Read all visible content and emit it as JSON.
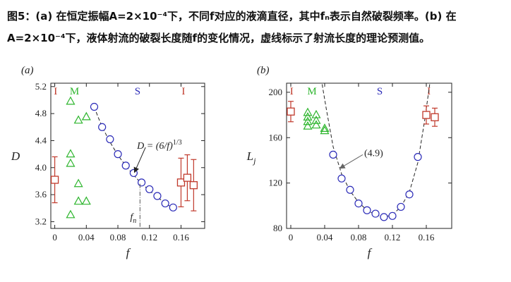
{
  "caption": {
    "line1": "图5：(a) 在恒定振幅A=2×10⁻⁴下，不同f对应的液滴直径，其中fₙ表示自然破裂频率。(b) 在",
    "line2": "A=2×10⁻⁴下，液体射流的破裂长度随f的变化情况，虚线标示了射流长度的理论预测值。"
  },
  "colors": {
    "I": "#c0392b",
    "M": "#2db52d",
    "S": "#2b2bb8",
    "axis": "#222222"
  },
  "chart_data": [
    {
      "panel_label": "(a)",
      "type": "scatter",
      "xlabel": "f",
      "ylabel": "D",
      "xlim": [
        -0.005,
        0.19
      ],
      "ylim": [
        3.1,
        5.25
      ],
      "xticks": [
        0,
        0.04,
        0.08,
        0.12,
        0.16
      ],
      "xtick_labels": [
        "0",
        "0.04",
        "0.08",
        "0.12",
        "0.16"
      ],
      "yticks": [
        3.2,
        3.6,
        4.0,
        4.4,
        4.8,
        5.2
      ],
      "ytick_labels": [
        "3.2",
        "3.6",
        "4.0",
        "4.4",
        "4.8",
        "5.2"
      ],
      "region_labels": [
        {
          "text": "I",
          "x": 0.001,
          "color_key": "I"
        },
        {
          "text": "M",
          "x": 0.025,
          "color_key": "M"
        },
        {
          "text": "S",
          "x": 0.105,
          "color_key": "S"
        },
        {
          "text": "I",
          "x": 0.163,
          "color_key": "I"
        }
      ],
      "series": [
        {
          "name": "I",
          "marker": "square",
          "color_key": "I",
          "points": [
            {
              "x": 0.0,
              "y": 3.82,
              "err": 0.34
            },
            {
              "x": 0.16,
              "y": 3.78,
              "err": 0.36
            },
            {
              "x": 0.168,
              "y": 3.85,
              "err": 0.34
            },
            {
              "x": 0.176,
              "y": 3.74,
              "err": 0.38
            }
          ]
        },
        {
          "name": "M",
          "marker": "triangle",
          "color_key": "M",
          "points": [
            {
              "x": 0.02,
              "y": 4.98
            },
            {
              "x": 0.02,
              "y": 4.2
            },
            {
              "x": 0.02,
              "y": 4.06
            },
            {
              "x": 0.02,
              "y": 3.3
            },
            {
              "x": 0.03,
              "y": 4.7
            },
            {
              "x": 0.03,
              "y": 3.76
            },
            {
              "x": 0.03,
              "y": 3.5
            },
            {
              "x": 0.04,
              "y": 4.75
            },
            {
              "x": 0.04,
              "y": 3.5
            }
          ]
        },
        {
          "name": "S",
          "marker": "circle",
          "color_key": "S",
          "points": [
            {
              "x": 0.05,
              "y": 4.9
            },
            {
              "x": 0.06,
              "y": 4.6
            },
            {
              "x": 0.07,
              "y": 4.42
            },
            {
              "x": 0.08,
              "y": 4.2
            },
            {
              "x": 0.09,
              "y": 4.03
            },
            {
              "x": 0.1,
              "y": 3.92
            },
            {
              "x": 0.11,
              "y": 3.78
            },
            {
              "x": 0.12,
              "y": 3.68
            },
            {
              "x": 0.13,
              "y": 3.58
            },
            {
              "x": 0.14,
              "y": 3.47
            },
            {
              "x": 0.15,
              "y": 3.41
            }
          ]
        }
      ],
      "theory_curve": {
        "label": "D = (6/f)^{1/3}",
        "x_range": [
          0.05,
          0.153
        ]
      },
      "annotation": {
        "text": "D = (6/f)",
        "superscript": "1/3",
        "arrow_from": {
          "x": 0.115,
          "y": 4.3
        },
        "arrow_to": {
          "x": 0.101,
          "y": 3.93
        }
      },
      "vline": {
        "x": 0.108,
        "y_bottom": 3.1,
        "y_top": 3.76,
        "label": "f",
        "label_sub": "n"
      }
    },
    {
      "panel_label": "(b)",
      "type": "scatter",
      "xlabel": "f",
      "ylabel": "L",
      "ylabel_sub": "j",
      "xlim": [
        -0.005,
        0.19
      ],
      "ylim": [
        80,
        208
      ],
      "xticks": [
        0,
        0.04,
        0.08,
        0.12,
        0.16
      ],
      "xtick_labels": [
        "0",
        "0.04",
        "0.08",
        "0.12",
        "0.16"
      ],
      "yticks": [
        80,
        120,
        160,
        200
      ],
      "ytick_labels": [
        "80",
        "120",
        "160",
        "200"
      ],
      "region_labels": [
        {
          "text": "I",
          "x": 0.001,
          "color_key": "I"
        },
        {
          "text": "M",
          "x": 0.025,
          "color_key": "M"
        },
        {
          "text": "S",
          "x": 0.105,
          "color_key": "S"
        },
        {
          "text": "I",
          "x": 0.163,
          "color_key": "I"
        }
      ],
      "series": [
        {
          "name": "I",
          "marker": "square",
          "color_key": "I",
          "points": [
            {
              "x": 0.0,
              "y": 183,
              "err": 9
            },
            {
              "x": 0.16,
              "y": 180,
              "err": 8
            },
            {
              "x": 0.17,
              "y": 178,
              "err": 8
            }
          ]
        },
        {
          "name": "M",
          "marker": "triangle",
          "color_key": "M",
          "points": [
            {
              "x": 0.02,
              "y": 182
            },
            {
              "x": 0.02,
              "y": 178
            },
            {
              "x": 0.02,
              "y": 174
            },
            {
              "x": 0.02,
              "y": 170
            },
            {
              "x": 0.03,
              "y": 180
            },
            {
              "x": 0.03,
              "y": 175
            },
            {
              "x": 0.03,
              "y": 171
            },
            {
              "x": 0.04,
              "y": 168
            },
            {
              "x": 0.04,
              "y": 166
            }
          ]
        },
        {
          "name": "S",
          "marker": "circle",
          "color_key": "S",
          "points": [
            {
              "x": 0.05,
              "y": 145
            },
            {
              "x": 0.06,
              "y": 124
            },
            {
              "x": 0.07,
              "y": 114
            },
            {
              "x": 0.08,
              "y": 102
            },
            {
              "x": 0.09,
              "y": 96
            },
            {
              "x": 0.1,
              "y": 93
            },
            {
              "x": 0.11,
              "y": 90
            },
            {
              "x": 0.12,
              "y": 91
            },
            {
              "x": 0.13,
              "y": 99
            },
            {
              "x": 0.14,
              "y": 110
            },
            {
              "x": 0.15,
              "y": 143
            }
          ]
        }
      ],
      "theory_curve_points": [
        {
          "x": 0.037,
          "y": 207
        },
        {
          "x": 0.042,
          "y": 185
        },
        {
          "x": 0.05,
          "y": 152
        },
        {
          "x": 0.06,
          "y": 128
        },
        {
          "x": 0.07,
          "y": 113
        },
        {
          "x": 0.08,
          "y": 103
        },
        {
          "x": 0.09,
          "y": 96
        },
        {
          "x": 0.1,
          "y": 92
        },
        {
          "x": 0.11,
          "y": 90
        },
        {
          "x": 0.12,
          "y": 92
        },
        {
          "x": 0.13,
          "y": 99
        },
        {
          "x": 0.14,
          "y": 112
        },
        {
          "x": 0.15,
          "y": 138
        },
        {
          "x": 0.158,
          "y": 175
        },
        {
          "x": 0.164,
          "y": 207
        }
      ],
      "annotation": {
        "text": "(4.9)",
        "arrow_from": {
          "x": 0.085,
          "y": 145
        },
        "arrow_to": {
          "x": 0.058,
          "y": 133
        }
      }
    }
  ]
}
